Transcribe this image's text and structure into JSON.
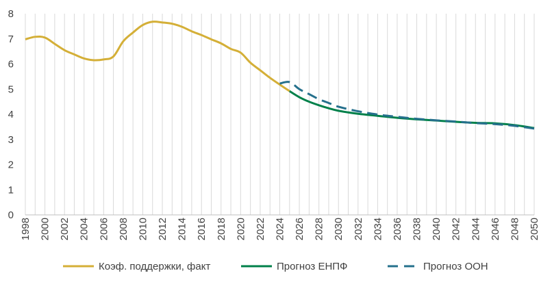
{
  "chart_data": {
    "type": "line",
    "title": "",
    "xlabel": "",
    "ylabel": "",
    "xlim": [
      1998,
      2050
    ],
    "ylim": [
      0,
      8
    ],
    "x_ticks": [
      "1998",
      "2000",
      "2002",
      "2004",
      "2006",
      "2008",
      "2010",
      "2012",
      "2014",
      "2016",
      "2018",
      "2020",
      "2022",
      "2024",
      "2026",
      "2028",
      "2030",
      "2032",
      "2034",
      "2036",
      "2038",
      "2040",
      "2042",
      "2044",
      "2046",
      "2048",
      "2050"
    ],
    "y_ticks": [
      "0",
      "1",
      "2",
      "3",
      "4",
      "5",
      "6",
      "7",
      "8"
    ],
    "grid": "vertical",
    "legend_position": "bottom",
    "series": [
      {
        "name": "Коэф. поддержки, факт",
        "color": "#D4AF37",
        "style": "solid",
        "points": [
          [
            1998,
            6.98
          ],
          [
            1999,
            7.08
          ],
          [
            2000,
            7.05
          ],
          [
            2001,
            6.8
          ],
          [
            2002,
            6.55
          ],
          [
            2003,
            6.38
          ],
          [
            2004,
            6.22
          ],
          [
            2005,
            6.15
          ],
          [
            2006,
            6.18
          ],
          [
            2007,
            6.3
          ],
          [
            2008,
            6.9
          ],
          [
            2009,
            7.25
          ],
          [
            2010,
            7.55
          ],
          [
            2011,
            7.68
          ],
          [
            2012,
            7.65
          ],
          [
            2013,
            7.6
          ],
          [
            2014,
            7.48
          ],
          [
            2015,
            7.3
          ],
          [
            2016,
            7.15
          ],
          [
            2017,
            6.98
          ],
          [
            2018,
            6.82
          ],
          [
            2019,
            6.6
          ],
          [
            2020,
            6.45
          ],
          [
            2021,
            6.05
          ],
          [
            2022,
            5.75
          ],
          [
            2023,
            5.45
          ],
          [
            2024,
            5.18
          ],
          [
            2025,
            4.92
          ]
        ]
      },
      {
        "name": "Прогноз ЕНПФ",
        "color": "#00804A",
        "style": "solid",
        "points": [
          [
            2025,
            4.92
          ],
          [
            2026,
            4.68
          ],
          [
            2027,
            4.5
          ],
          [
            2028,
            4.36
          ],
          [
            2029,
            4.24
          ],
          [
            2030,
            4.14
          ],
          [
            2032,
            4.02
          ],
          [
            2034,
            3.94
          ],
          [
            2036,
            3.86
          ],
          [
            2038,
            3.8
          ],
          [
            2040,
            3.75
          ],
          [
            2042,
            3.7
          ],
          [
            2044,
            3.66
          ],
          [
            2046,
            3.64
          ],
          [
            2048,
            3.57
          ],
          [
            2050,
            3.45
          ]
        ]
      },
      {
        "name": "Прогноз ООН",
        "color": "#25708C",
        "style": "dashed",
        "points": [
          [
            2024,
            5.22
          ],
          [
            2025,
            5.28
          ],
          [
            2026,
            5.0
          ],
          [
            2027,
            4.8
          ],
          [
            2028,
            4.6
          ],
          [
            2029,
            4.45
          ],
          [
            2030,
            4.3
          ],
          [
            2032,
            4.12
          ],
          [
            2034,
            3.99
          ],
          [
            2036,
            3.9
          ],
          [
            2038,
            3.82
          ],
          [
            2040,
            3.76
          ],
          [
            2042,
            3.71
          ],
          [
            2044,
            3.65
          ],
          [
            2046,
            3.61
          ],
          [
            2048,
            3.54
          ],
          [
            2050,
            3.43
          ]
        ]
      }
    ]
  }
}
